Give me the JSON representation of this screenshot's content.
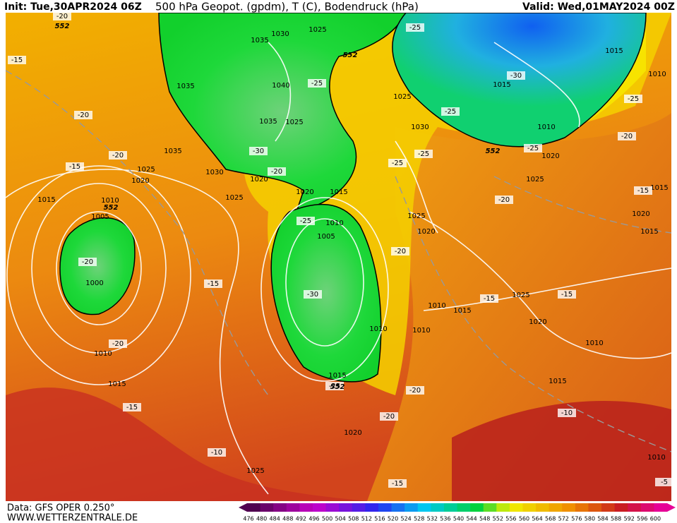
{
  "header": {
    "init": "Init: Tue,30APR2024 06Z",
    "title": "500 hPa Geopot. (gpdm), T (C), Bodendruck (hPa)",
    "valid": "Valid: Wed,01MAY2024 00Z"
  },
  "footer": {
    "source": "Data: GFS OPER 0.250°",
    "website": "WWW.WETTERZENTRALE.DE"
  },
  "colorbar": {
    "levels": [
      476,
      480,
      484,
      488,
      492,
      496,
      500,
      504,
      508,
      512,
      516,
      520,
      524,
      528,
      532,
      536,
      540,
      544,
      548,
      552,
      556,
      560,
      564,
      568,
      572,
      576,
      580,
      584,
      588,
      592,
      596,
      600
    ]
  },
  "map": {
    "isobar_labels": [
      "1030",
      "1025",
      "1035",
      "1015",
      "1010",
      "1015",
      "1035",
      "1040",
      "1025",
      "1035",
      "1025",
      "1030",
      "1010",
      "1035",
      "1020",
      "1025",
      "1030",
      "1020",
      "1020",
      "1025",
      "1020",
      "1015",
      "1015",
      "1025",
      "1015",
      "1010",
      "1025",
      "1020",
      "1005",
      "1010",
      "1020",
      "1015",
      "1005",
      "1000",
      "1025",
      "1010",
      "1015",
      "1020",
      "1010",
      "1010",
      "1010",
      "1010",
      "1015",
      "1015",
      "1015",
      "1020",
      "1025",
      "1010"
    ],
    "temperature_labels": [
      "-20",
      "-15",
      "-25",
      "-20",
      "-20",
      "-15",
      "-25",
      "-30",
      "-25",
      "-25",
      "-25",
      "-25",
      "-30",
      "-20",
      "-25",
      "-20",
      "-20",
      "-15",
      "-25",
      "-20",
      "-20",
      "-30",
      "-15",
      "-15",
      "-15",
      "-20",
      "-25",
      "-20",
      "-15",
      "-20",
      "-10",
      "-10",
      "-15",
      "-5"
    ],
    "geopotential_labels": [
      "552",
      "552",
      "552",
      "552",
      "552"
    ]
  }
}
